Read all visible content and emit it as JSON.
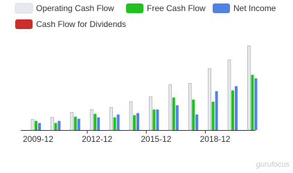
{
  "chart_data": {
    "type": "bar",
    "categories": [
      "2009-12",
      null,
      null,
      "2012-12",
      null,
      null,
      "2015-12",
      null,
      null,
      "2018-12",
      null,
      null
    ],
    "series": [
      {
        "name": "Operating Cash Flow",
        "color": "#e6e9ed",
        "values": [
          15,
          18,
          25,
          29,
          32,
          40,
          47,
          64,
          66,
          87,
          99,
          119
        ]
      },
      {
        "name": "Free Cash Flow",
        "color": "#1fc21f",
        "values": [
          13,
          10,
          19,
          23,
          18,
          21,
          29,
          46,
          43,
          40,
          56,
          78
        ]
      },
      {
        "name": "Net Income",
        "color": "#4f82e3",
        "values": [
          10,
          13,
          16,
          18,
          22,
          24,
          29,
          35,
          22,
          55,
          62,
          73
        ]
      },
      {
        "name": "Cash Flow for Dividends",
        "color": "#c9302c",
        "values": [
          null,
          null,
          null,
          null,
          null,
          null,
          null,
          null,
          null,
          null,
          null,
          null
        ]
      }
    ],
    "ylim": [
      0,
      125
    ],
    "watermark": "gurufocus"
  }
}
